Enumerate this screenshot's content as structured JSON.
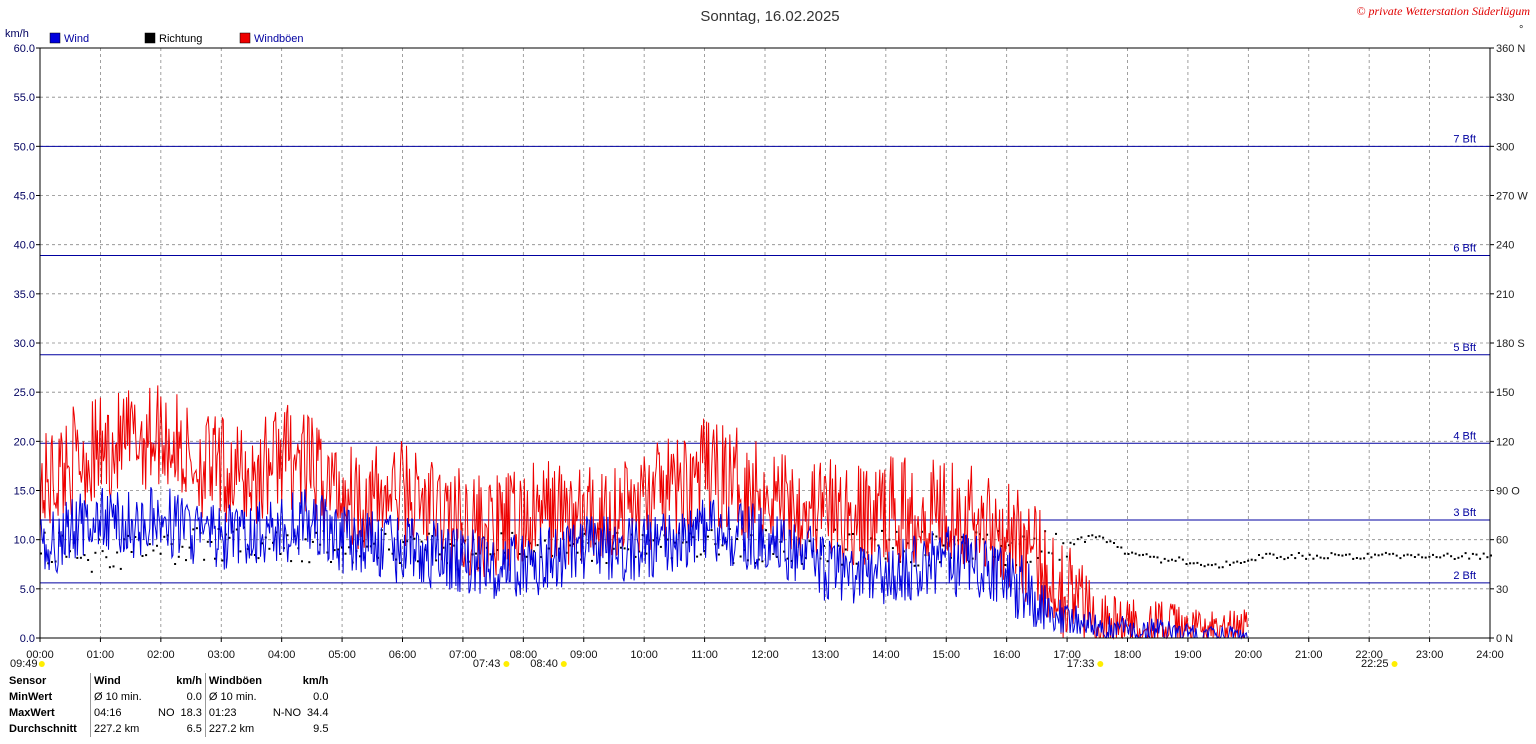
{
  "title": "Sonntag, 16.02.2025",
  "copyright": "© private Wetterstation Süderlügum",
  "colors": {
    "wind": "#0000dd",
    "gust": "#ee0000",
    "direction": "#000000",
    "bft": "#0000a0",
    "grid": "#888888",
    "sun": "#ffee00"
  },
  "legend": [
    {
      "key": "wind",
      "label": "Wind",
      "color": "#0000dd",
      "text_color": "#0000a0"
    },
    {
      "key": "direction",
      "label": "Richtung",
      "color": "#000000",
      "text_color": "#000000"
    },
    {
      "key": "gust",
      "label": "Windböen",
      "color": "#ee0000",
      "text_color": "#0000a0"
    }
  ],
  "chart_data": {
    "type": "line",
    "ylabel": "km/h",
    "ylim": [
      0,
      60
    ],
    "yticks": [
      "0.0",
      "5.0",
      "10.0",
      "15.0",
      "20.0",
      "25.0",
      "30.0",
      "35.0",
      "40.0",
      "45.0",
      "50.0",
      "55.0",
      "60.0"
    ],
    "y2label": "°",
    "y2lim": [
      0,
      360
    ],
    "y2ticks": [
      "0  N",
      "30",
      "60",
      "90  O",
      "120",
      "150",
      "180  S",
      "210",
      "240",
      "270  W",
      "300",
      "330",
      "360  N"
    ],
    "xlim_hours": [
      0,
      24
    ],
    "xticks": [
      "00:00",
      "01:00",
      "02:00",
      "03:00",
      "04:00",
      "05:00",
      "06:00",
      "07:00",
      "08:00",
      "09:00",
      "10:00",
      "11:00",
      "12:00",
      "13:00",
      "14:00",
      "15:00",
      "16:00",
      "17:00",
      "18:00",
      "19:00",
      "20:00",
      "21:00",
      "22:00",
      "23:00",
      "24:00"
    ],
    "grid": true,
    "beaufort_lines": [
      {
        "label": "2 Bft",
        "kmh": 5.6
      },
      {
        "label": "3 Bft",
        "kmh": 12.0
      },
      {
        "label": "4 Bft",
        "kmh": 19.8
      },
      {
        "label": "5 Bft",
        "kmh": 28.8
      },
      {
        "label": "6 Bft",
        "kmh": 38.9
      },
      {
        "label": "7 Bft",
        "kmh": 50.0
      }
    ],
    "series": [
      {
        "name": "Wind",
        "key": "wind",
        "hours": [
          0,
          0.5,
          1,
          1.5,
          2,
          2.5,
          3,
          3.5,
          4,
          4.5,
          5,
          5.5,
          6,
          6.5,
          7,
          7.5,
          8,
          8.5,
          9,
          9.5,
          10,
          10.5,
          11,
          11.5,
          12,
          12.5,
          13,
          13.5,
          14,
          14.5,
          15,
          15.5,
          16,
          16.5,
          17,
          17.5,
          18,
          18.5,
          19,
          19.5,
          20,
          20.5,
          21,
          22,
          23,
          24
        ],
        "values": [
          9,
          11,
          12,
          11.5,
          12,
          11,
          10,
          10.5,
          11,
          12,
          10,
          9.5,
          9,
          8.5,
          8,
          7,
          7.5,
          8,
          9,
          9,
          9.5,
          10,
          11,
          10.5,
          10,
          9,
          7,
          6,
          6.5,
          7,
          8,
          7,
          6,
          4,
          2,
          1,
          1,
          0.8,
          0.5,
          0.3,
          0.5,
          null,
          null,
          null,
          null,
          null
        ]
      },
      {
        "name": "Windböen",
        "key": "gust",
        "hours": [
          0,
          0.5,
          1,
          1.5,
          2,
          2.5,
          3,
          3.5,
          4,
          4.5,
          5,
          5.5,
          6,
          6.5,
          7,
          7.5,
          8,
          8.5,
          9,
          9.5,
          10,
          10.5,
          11,
          11.5,
          12,
          12.5,
          13,
          13.5,
          14,
          14.5,
          15,
          15.5,
          16,
          16.5,
          17,
          17.5,
          18,
          18.5,
          19,
          19.5,
          20,
          20.5
        ],
        "values": [
          15,
          18,
          19,
          20,
          21,
          18,
          17,
          16,
          19,
          17,
          15,
          14,
          15,
          13,
          12,
          11,
          12,
          13,
          12,
          13,
          14,
          15,
          17,
          16,
          15,
          14,
          13,
          12,
          13,
          13,
          14,
          12,
          11,
          8,
          5,
          2,
          1.5,
          1.5,
          1,
          0.8,
          1,
          null
        ]
      },
      {
        "name": "Richtung",
        "key": "direction",
        "axis": "y2",
        "hours": [
          0,
          1,
          2,
          3,
          4,
          5,
          6,
          7,
          8,
          9,
          10,
          11,
          12,
          13,
          14,
          15,
          16,
          17,
          17.5,
          18,
          18.5,
          19,
          19.5,
          20,
          20.5,
          21,
          22,
          23,
          24
        ],
        "values": [
          55,
          50,
          55,
          58,
          57,
          56,
          55,
          52,
          55,
          56,
          55,
          56,
          55,
          56,
          55,
          54,
          55,
          58,
          62,
          52,
          48,
          47,
          44,
          49,
          50,
          50,
          50,
          50,
          50
        ]
      }
    ],
    "annotations": {
      "max_gust": {
        "time": "01:23",
        "value": 34.4
      }
    }
  },
  "sun_markers": [
    {
      "label": "09:49",
      "hour": 0.03
    },
    {
      "label": "07:43",
      "hour": 7.72
    },
    {
      "label": "08:40",
      "hour": 8.67
    },
    {
      "label": "17:33",
      "hour": 17.55
    },
    {
      "label": "22:25",
      "hour": 22.42
    }
  ],
  "stats": {
    "header": {
      "sensor": "Sensor",
      "wind": "Wind",
      "wind_unit": "km/h",
      "gust": "Windböen",
      "gust_unit": "km/h"
    },
    "rows": [
      {
        "label": "MinWert",
        "wind_info": "Ø 10 min.",
        "wind_val": "0.0",
        "gust_info": "Ø 10 min.",
        "gust_val": "0.0"
      },
      {
        "label": "MaxWert",
        "wind_info": "04:16",
        "wind_dir": "NO",
        "wind_val": "18.3",
        "gust_info": "01:23",
        "gust_dir": "N-NO",
        "gust_val": "34.4"
      },
      {
        "label": "Durchschnitt",
        "wind_info": "227.2 km",
        "wind_val": "6.5",
        "gust_info": "227.2 km",
        "gust_val": "9.5"
      }
    ]
  }
}
